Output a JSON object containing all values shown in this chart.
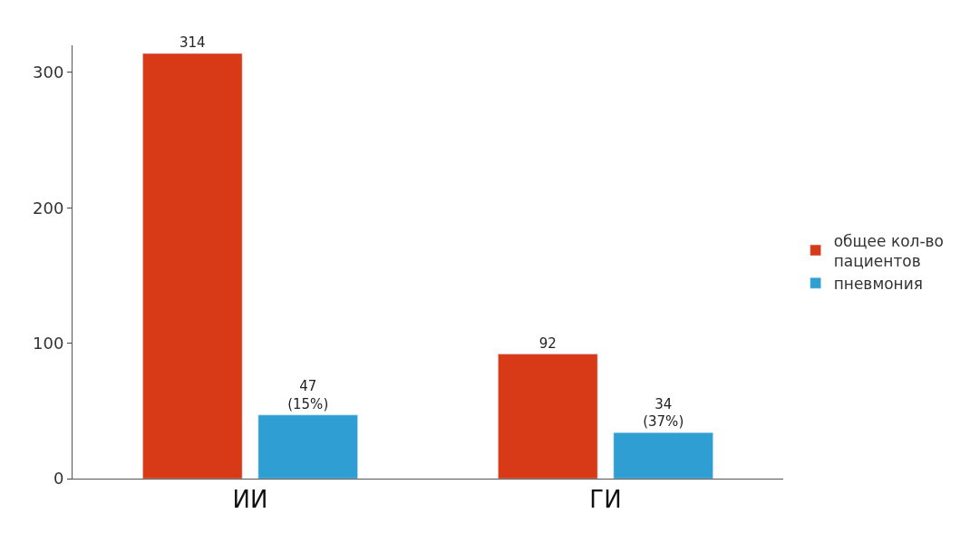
{
  "chart_data": {
    "type": "bar",
    "categories": [
      "ИИ",
      "ГИ"
    ],
    "series": [
      {
        "name": "общее кол-во пациентов",
        "color": "#d83a18",
        "values": [
          314,
          92
        ],
        "value_labels": [
          "314",
          "92"
        ]
      },
      {
        "name": "пневмония",
        "color": "#2f9fd3",
        "values": [
          47,
          34
        ],
        "value_labels": [
          "47\n(15%)",
          "34\n(37%)"
        ]
      }
    ],
    "ylim": [
      0,
      320
    ],
    "yticks": [
      0,
      100,
      200,
      300
    ],
    "legend": "right"
  }
}
